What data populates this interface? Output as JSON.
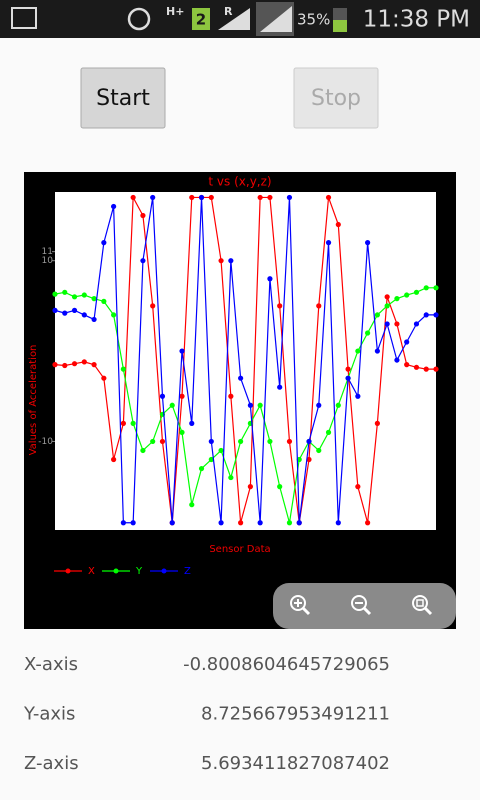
{
  "status_bar": {
    "network": "H+",
    "sim": "2",
    "roaming": "R",
    "battery": "35%",
    "time": "11:38 PM"
  },
  "buttons": {
    "start": "Start",
    "stop": "Stop"
  },
  "chart_data": {
    "type": "line",
    "title": "t vs (x,y,z)",
    "x_label": "Sensor Data",
    "y_label": "Values of Acceleration",
    "x": [
      0,
      1,
      2,
      3,
      4,
      5,
      6,
      7,
      8,
      9,
      10,
      11,
      12,
      13,
      14,
      15,
      16,
      17,
      18,
      19,
      20,
      21,
      22,
      23,
      24,
      25,
      26,
      27,
      28,
      29,
      30,
      31,
      32,
      33,
      34,
      35,
      36,
      37,
      38,
      39
    ],
    "xlim": [
      0,
      39
    ],
    "ylim": [
      -19.8,
      17.6
    ],
    "yticks": [
      -10,
      10,
      11
    ],
    "grid": false,
    "series": [
      {
        "name": "X",
        "color": "#ff0000",
        "values": [
          -1.5,
          -1.6,
          -1.4,
          -1.2,
          -1.5,
          -3,
          -12,
          -8,
          17,
          15,
          5,
          -10,
          -19,
          -5,
          17,
          17,
          17,
          10,
          -5,
          -19,
          -15,
          17,
          17,
          5,
          -10,
          -19,
          -12,
          5,
          17,
          14,
          -2,
          -15,
          -19,
          -8,
          6,
          3,
          -1.5,
          -1.8,
          -2,
          -2
        ]
      },
      {
        "name": "Y",
        "color": "#00ff00",
        "values": [
          6.3,
          6.5,
          6.0,
          6.2,
          5.8,
          5.5,
          4,
          -2,
          -8,
          -11,
          -10,
          -7,
          -6,
          -9,
          -17,
          -13,
          -12,
          -11,
          -14,
          -10,
          -8,
          -6,
          -10,
          -15,
          -19,
          -12,
          -10,
          -11,
          -9,
          -6,
          -3,
          0,
          2,
          4,
          5,
          5.8,
          6.2,
          6.5,
          7,
          7
        ]
      },
      {
        "name": "Z",
        "color": "#0000ff",
        "values": [
          4.5,
          4.2,
          4.5,
          4,
          3.5,
          12,
          16,
          -19,
          -19,
          10,
          17,
          -5,
          -19,
          0,
          -8,
          17,
          -10,
          -19,
          10,
          -3,
          -6,
          -19,
          8,
          -4,
          17,
          -19,
          -10,
          -6,
          12,
          -19,
          -3,
          -5,
          12,
          0,
          3,
          -1,
          1,
          3,
          4,
          4
        ]
      }
    ]
  },
  "readings": [
    {
      "label": "X-axis",
      "value": "-0.8008604645729065"
    },
    {
      "label": "Y-axis",
      "value": "8.72566795349121​1"
    },
    {
      "label": "Z-axis",
      "value": "5.693411827087402"
    }
  ]
}
